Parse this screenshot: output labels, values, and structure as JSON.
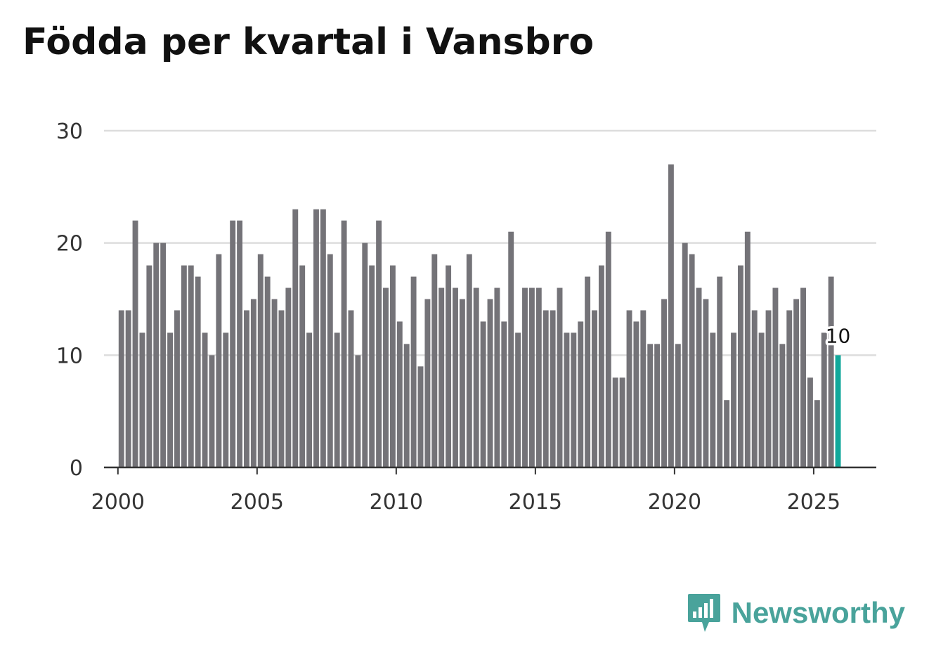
{
  "colors": {
    "bar": "#747378",
    "highlight": "#11a89b",
    "grid": "#dddddd",
    "axis": "#333333",
    "brand": "#49a39b"
  },
  "brand": {
    "name": "Newsworthy",
    "logo_icon": "newsworthy-logo-icon"
  },
  "chart_data": {
    "type": "bar",
    "title": "Födda per kvartal i Vansbro",
    "xlabel": "",
    "ylabel": "",
    "ylim": [
      0,
      30
    ],
    "y_ticks": [
      0,
      10,
      20,
      30
    ],
    "x_ticks": [
      2000,
      2005,
      2010,
      2015,
      2020,
      2025
    ],
    "x_range": [
      1999.5,
      2027.25
    ],
    "grid": true,
    "start_year": 2000,
    "values": [
      14,
      14,
      22,
      12,
      18,
      20,
      20,
      12,
      14,
      18,
      18,
      17,
      12,
      10,
      19,
      12,
      22,
      22,
      14,
      15,
      19,
      17,
      15,
      14,
      16,
      23,
      18,
      12,
      23,
      23,
      19,
      12,
      22,
      14,
      10,
      20,
      18,
      22,
      16,
      18,
      13,
      11,
      17,
      9,
      15,
      19,
      16,
      18,
      16,
      15,
      19,
      16,
      13,
      15,
      16,
      13,
      21,
      12,
      16,
      16,
      16,
      14,
      14,
      16,
      12,
      12,
      13,
      17,
      14,
      18,
      21,
      8,
      8,
      14,
      13,
      14,
      11,
      11,
      15,
      27,
      11,
      20,
      19,
      16,
      15,
      12,
      17,
      6,
      12,
      18,
      21,
      14,
      12,
      14,
      16,
      11,
      14,
      15,
      16,
      8,
      6,
      12,
      17,
      10
    ],
    "highlight_index": 103,
    "data_labels": [
      {
        "index": 103,
        "text": "10"
      }
    ]
  }
}
